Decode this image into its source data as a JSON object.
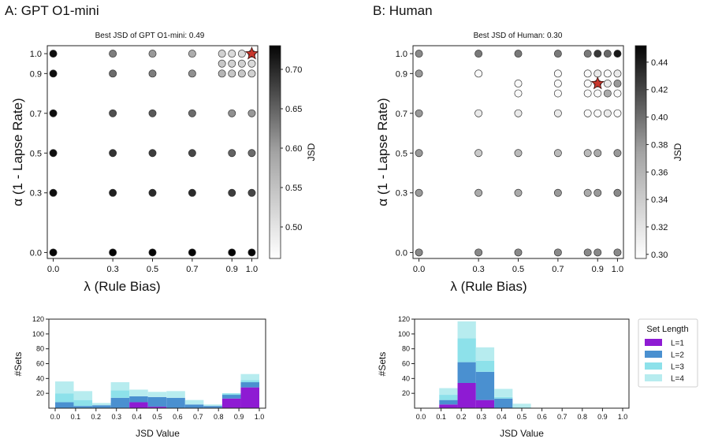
{
  "panels": [
    {
      "panel_label": "A: GPT O1-mini",
      "subtitle": "Best JSD of GPT O1-mini: 0.49",
      "xlabel": "λ (Rule Bias)",
      "ylabel": "α (1 - Lapse Rate)",
      "colorbar_label": "JSD",
      "colorbar_ticks": [
        "0.50",
        "0.55",
        "0.60",
        "0.65",
        "0.70"
      ]
    },
    {
      "panel_label": "B: Human",
      "subtitle": "Best JSD of Human: 0.30",
      "xlabel": "λ (Rule Bias)",
      "ylabel": "α (1 - Lapse Rate)",
      "colorbar_label": "JSD",
      "colorbar_ticks": [
        "0.30",
        "0.32",
        "0.34",
        "0.36",
        "0.38",
        "0.40",
        "0.42",
        "0.44"
      ]
    }
  ],
  "histograms": [
    {
      "xlabel": "JSD Value",
      "ylabel": "#Sets"
    },
    {
      "xlabel": "JSD Value",
      "ylabel": "#Sets",
      "legend_title": "Set Length",
      "legend": [
        "L=1",
        "L=2",
        "L=3",
        "L=4"
      ]
    }
  ],
  "chart_data": [
    {
      "type": "scatter",
      "title": "Best JSD of GPT O1-mini: 0.49",
      "xlabel": "λ (Rule Bias)",
      "ylabel": "α (1 - Lapse Rate)",
      "x_ticks": [
        0.0,
        0.3,
        0.5,
        0.7,
        0.9,
        1.0
      ],
      "y_ticks": [
        0.0,
        0.3,
        0.5,
        0.7,
        0.9,
        1.0
      ],
      "xlim": [
        -0.03,
        1.03
      ],
      "ylim": [
        -0.03,
        1.04
      ],
      "color_scale": {
        "label": "JSD",
        "min": 0.46,
        "max": 0.73,
        "colormap": "Greys"
      },
      "best_point": {
        "x": 1.0,
        "y": 1.0,
        "jsd": 0.49
      },
      "points": [
        {
          "x": 0.0,
          "y": 1.0,
          "jsd": 0.72
        },
        {
          "x": 0.0,
          "y": 0.9,
          "jsd": 0.72
        },
        {
          "x": 0.0,
          "y": 0.7,
          "jsd": 0.72
        },
        {
          "x": 0.0,
          "y": 0.5,
          "jsd": 0.72
        },
        {
          "x": 0.0,
          "y": 0.3,
          "jsd": 0.72
        },
        {
          "x": 0.0,
          "y": 0.0,
          "jsd": 0.73
        },
        {
          "x": 0.3,
          "y": 1.0,
          "jsd": 0.6
        },
        {
          "x": 0.3,
          "y": 0.9,
          "jsd": 0.62
        },
        {
          "x": 0.3,
          "y": 0.7,
          "jsd": 0.65
        },
        {
          "x": 0.3,
          "y": 0.5,
          "jsd": 0.68
        },
        {
          "x": 0.3,
          "y": 0.3,
          "jsd": 0.7
        },
        {
          "x": 0.3,
          "y": 0.0,
          "jsd": 0.73
        },
        {
          "x": 0.5,
          "y": 1.0,
          "jsd": 0.57
        },
        {
          "x": 0.5,
          "y": 0.9,
          "jsd": 0.6
        },
        {
          "x": 0.5,
          "y": 0.7,
          "jsd": 0.64
        },
        {
          "x": 0.5,
          "y": 0.5,
          "jsd": 0.67
        },
        {
          "x": 0.5,
          "y": 0.3,
          "jsd": 0.69
        },
        {
          "x": 0.5,
          "y": 0.0,
          "jsd": 0.73
        },
        {
          "x": 0.7,
          "y": 1.0,
          "jsd": 0.55
        },
        {
          "x": 0.7,
          "y": 0.9,
          "jsd": 0.58
        },
        {
          "x": 0.7,
          "y": 0.7,
          "jsd": 0.62
        },
        {
          "x": 0.7,
          "y": 0.5,
          "jsd": 0.66
        },
        {
          "x": 0.7,
          "y": 0.3,
          "jsd": 0.69
        },
        {
          "x": 0.7,
          "y": 0.0,
          "jsd": 0.73
        },
        {
          "x": 0.85,
          "y": 1.0,
          "jsd": 0.51
        },
        {
          "x": 0.9,
          "y": 1.0,
          "jsd": 0.5
        },
        {
          "x": 0.95,
          "y": 1.0,
          "jsd": 0.5
        },
        {
          "x": 1.0,
          "y": 1.0,
          "jsd": 0.49
        },
        {
          "x": 0.85,
          "y": 0.95,
          "jsd": 0.52
        },
        {
          "x": 0.9,
          "y": 0.95,
          "jsd": 0.51
        },
        {
          "x": 0.95,
          "y": 0.95,
          "jsd": 0.51
        },
        {
          "x": 1.0,
          "y": 0.95,
          "jsd": 0.5
        },
        {
          "x": 0.85,
          "y": 0.9,
          "jsd": 0.54
        },
        {
          "x": 0.9,
          "y": 0.9,
          "jsd": 0.52
        },
        {
          "x": 0.95,
          "y": 0.9,
          "jsd": 0.52
        },
        {
          "x": 1.0,
          "y": 0.9,
          "jsd": 0.51
        },
        {
          "x": 0.9,
          "y": 0.7,
          "jsd": 0.58
        },
        {
          "x": 1.0,
          "y": 0.7,
          "jsd": 0.57
        },
        {
          "x": 0.9,
          "y": 0.5,
          "jsd": 0.63
        },
        {
          "x": 1.0,
          "y": 0.5,
          "jsd": 0.62
        },
        {
          "x": 0.9,
          "y": 0.3,
          "jsd": 0.67
        },
        {
          "x": 1.0,
          "y": 0.3,
          "jsd": 0.66
        },
        {
          "x": 0.9,
          "y": 0.0,
          "jsd": 0.73
        },
        {
          "x": 1.0,
          "y": 0.0,
          "jsd": 0.73
        }
      ]
    },
    {
      "type": "scatter",
      "title": "Best JSD of Human: 0.30",
      "xlabel": "λ (Rule Bias)",
      "ylabel": "α (1 - Lapse Rate)",
      "x_ticks": [
        0.0,
        0.3,
        0.5,
        0.7,
        0.9,
        1.0
      ],
      "y_ticks": [
        0.0,
        0.3,
        0.5,
        0.7,
        0.9,
        1.0
      ],
      "xlim": [
        -0.03,
        1.03
      ],
      "ylim": [
        -0.03,
        1.04
      ],
      "color_scale": {
        "label": "JSD",
        "min": 0.297,
        "max": 0.452,
        "colormap": "Greys"
      },
      "best_point": {
        "x": 0.9,
        "y": 0.85,
        "jsd": 0.3
      },
      "points": [
        {
          "x": 0.0,
          "y": 1.0,
          "jsd": 0.37
        },
        {
          "x": 0.0,
          "y": 0.9,
          "jsd": 0.36
        },
        {
          "x": 0.0,
          "y": 0.7,
          "jsd": 0.36
        },
        {
          "x": 0.0,
          "y": 0.5,
          "jsd": 0.36
        },
        {
          "x": 0.0,
          "y": 0.3,
          "jsd": 0.36
        },
        {
          "x": 0.0,
          "y": 0.0,
          "jsd": 0.37
        },
        {
          "x": 0.3,
          "y": 1.0,
          "jsd": 0.38
        },
        {
          "x": 0.3,
          "y": 0.9,
          "jsd": 0.3
        },
        {
          "x": 0.3,
          "y": 0.7,
          "jsd": 0.31
        },
        {
          "x": 0.3,
          "y": 0.5,
          "jsd": 0.33
        },
        {
          "x": 0.3,
          "y": 0.3,
          "jsd": 0.35
        },
        {
          "x": 0.3,
          "y": 0.0,
          "jsd": 0.37
        },
        {
          "x": 0.5,
          "y": 1.0,
          "jsd": 0.38
        },
        {
          "x": 0.5,
          "y": 0.85,
          "jsd": 0.3
        },
        {
          "x": 0.5,
          "y": 0.8,
          "jsd": 0.3
        },
        {
          "x": 0.5,
          "y": 0.7,
          "jsd": 0.31
        },
        {
          "x": 0.5,
          "y": 0.5,
          "jsd": 0.34
        },
        {
          "x": 0.5,
          "y": 0.3,
          "jsd": 0.35
        },
        {
          "x": 0.5,
          "y": 0.0,
          "jsd": 0.37
        },
        {
          "x": 0.7,
          "y": 1.0,
          "jsd": 0.38
        },
        {
          "x": 0.7,
          "y": 0.9,
          "jsd": 0.3
        },
        {
          "x": 0.7,
          "y": 0.85,
          "jsd": 0.3
        },
        {
          "x": 0.7,
          "y": 0.8,
          "jsd": 0.3
        },
        {
          "x": 0.7,
          "y": 0.7,
          "jsd": 0.31
        },
        {
          "x": 0.7,
          "y": 0.5,
          "jsd": 0.34
        },
        {
          "x": 0.7,
          "y": 0.3,
          "jsd": 0.36
        },
        {
          "x": 0.7,
          "y": 0.0,
          "jsd": 0.37
        },
        {
          "x": 0.85,
          "y": 1.0,
          "jsd": 0.38
        },
        {
          "x": 0.9,
          "y": 1.0,
          "jsd": 0.42
        },
        {
          "x": 0.95,
          "y": 1.0,
          "jsd": 0.39
        },
        {
          "x": 1.0,
          "y": 1.0,
          "jsd": 0.44
        },
        {
          "x": 0.85,
          "y": 0.9,
          "jsd": 0.3
        },
        {
          "x": 0.9,
          "y": 0.9,
          "jsd": 0.31
        },
        {
          "x": 0.95,
          "y": 0.9,
          "jsd": 0.3
        },
        {
          "x": 1.0,
          "y": 0.9,
          "jsd": 0.31
        },
        {
          "x": 0.85,
          "y": 0.85,
          "jsd": 0.3
        },
        {
          "x": 0.9,
          "y": 0.85,
          "jsd": 0.3
        },
        {
          "x": 0.95,
          "y": 0.85,
          "jsd": 0.31
        },
        {
          "x": 1.0,
          "y": 0.85,
          "jsd": 0.36
        },
        {
          "x": 0.85,
          "y": 0.8,
          "jsd": 0.3
        },
        {
          "x": 0.9,
          "y": 0.8,
          "jsd": 0.3
        },
        {
          "x": 0.95,
          "y": 0.8,
          "jsd": 0.35
        },
        {
          "x": 1.0,
          "y": 0.8,
          "jsd": 0.3
        },
        {
          "x": 0.85,
          "y": 0.7,
          "jsd": 0.3
        },
        {
          "x": 0.9,
          "y": 0.7,
          "jsd": 0.3
        },
        {
          "x": 0.95,
          "y": 0.7,
          "jsd": 0.31
        },
        {
          "x": 1.0,
          "y": 0.7,
          "jsd": 0.3
        },
        {
          "x": 0.85,
          "y": 0.5,
          "jsd": 0.34
        },
        {
          "x": 0.9,
          "y": 0.5,
          "jsd": 0.35
        },
        {
          "x": 1.0,
          "y": 0.5,
          "jsd": 0.36
        },
        {
          "x": 0.85,
          "y": 0.3,
          "jsd": 0.35
        },
        {
          "x": 0.9,
          "y": 0.3,
          "jsd": 0.36
        },
        {
          "x": 1.0,
          "y": 0.3,
          "jsd": 0.37
        },
        {
          "x": 0.85,
          "y": 0.0,
          "jsd": 0.37
        },
        {
          "x": 0.9,
          "y": 0.0,
          "jsd": 0.37
        },
        {
          "x": 1.0,
          "y": 0.0,
          "jsd": 0.37
        }
      ]
    },
    {
      "type": "bar",
      "stacked": true,
      "xlabel": "JSD Value",
      "ylabel": "#Sets",
      "bin_edges": [
        0.0,
        0.1,
        0.2,
        0.3,
        0.4,
        0.5,
        0.6,
        0.7,
        0.8,
        0.9,
        1.0
      ],
      "x_ticks": [
        "0.0",
        "0.1",
        "0.2",
        "0.3",
        "0.4",
        "0.5",
        "0.6",
        "0.7",
        "0.8",
        "0.9",
        "1.0"
      ],
      "y_ticks": [
        20,
        40,
        60,
        80,
        100,
        120
      ],
      "ylim": [
        0,
        120
      ],
      "series": [
        {
          "name": "L=1",
          "color": "#8e1bd3",
          "values": [
            0,
            0,
            0,
            0,
            8,
            2,
            0,
            0,
            0,
            13,
            28
          ]
        },
        {
          "name": "L=2",
          "color": "#4a90d0",
          "values": [
            8,
            3,
            4,
            14,
            8,
            13,
            14,
            5,
            3,
            5,
            7
          ]
        },
        {
          "name": "L=3",
          "color": "#8de1ea",
          "values": [
            12,
            8,
            0,
            10,
            0,
            0,
            0,
            0,
            0,
            2,
            3
          ]
        },
        {
          "name": "L=4",
          "color": "#b7ecef",
          "values": [
            16,
            12,
            3,
            11,
            9,
            7,
            9,
            6,
            2,
            0,
            8
          ]
        }
      ]
    },
    {
      "type": "bar",
      "stacked": true,
      "xlabel": "JSD Value",
      "ylabel": "#Sets",
      "bin_edges": [
        0.0,
        0.1,
        0.2,
        0.3,
        0.4,
        0.5,
        0.6,
        0.7,
        0.8,
        0.9,
        1.0
      ],
      "x_ticks": [
        "0.0",
        "0.1",
        "0.2",
        "0.3",
        "0.4",
        "0.5",
        "0.6",
        "0.7",
        "0.8",
        "0.9",
        "1.0"
      ],
      "y_ticks": [
        20,
        40,
        60,
        80,
        100,
        120
      ],
      "ylim": [
        0,
        120
      ],
      "legend_title": "Set Length",
      "legend_position": "right",
      "series": [
        {
          "name": "L=1",
          "color": "#8e1bd3",
          "values": [
            0,
            5,
            34,
            11,
            0,
            0,
            0,
            0,
            0,
            0,
            0
          ]
        },
        {
          "name": "L=2",
          "color": "#4a90d0",
          "values": [
            0,
            6,
            28,
            38,
            13,
            0,
            0,
            0,
            0,
            0,
            0
          ]
        },
        {
          "name": "L=3",
          "color": "#8de1ea",
          "values": [
            0,
            7,
            32,
            15,
            2,
            1,
            0,
            0,
            0,
            0,
            0
          ]
        },
        {
          "name": "L=4",
          "color": "#b7ecef",
          "values": [
            0,
            9,
            23,
            18,
            11,
            5,
            0,
            0,
            0,
            0,
            0
          ]
        }
      ]
    }
  ]
}
